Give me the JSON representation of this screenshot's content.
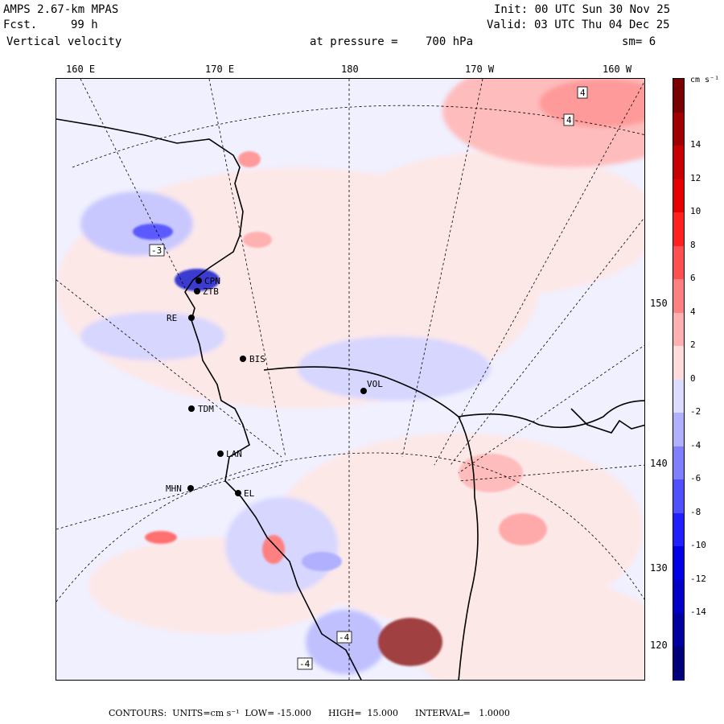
{
  "header": {
    "model": "AMPS 2.67-km MPAS",
    "fcst_label": "Fcst.",
    "fcst_value": "99 h",
    "field": "Vertical velocity",
    "init": "Init: 00 UTC Sun 30 Nov 25",
    "valid": "Valid: 03 UTC Thu 04 Dec 25",
    "pressure_label": "at pressure =",
    "pressure_value": "700 hPa",
    "smooth": "sm= 6"
  },
  "map": {
    "longitude_labels": [
      "160 E",
      "170 E",
      "180",
      "170 W",
      "160 W"
    ],
    "latitude_labels": [
      "150 W",
      "140 W",
      "130 W",
      "120 W"
    ],
    "stations": [
      {
        "id": "CPN"
      },
      {
        "id": "ZTB"
      },
      {
        "id": "RE"
      },
      {
        "id": "BIS"
      },
      {
        "id": "VOL"
      },
      {
        "id": "TDM"
      },
      {
        "id": "LAN"
      },
      {
        "id": "MHN"
      },
      {
        "id": "EL"
      }
    ],
    "contour_labels": [
      "4",
      "4",
      "-4",
      "-4",
      "-3"
    ]
  },
  "colorbar": {
    "units": "cm s⁻¹",
    "ticks": [
      "14",
      "12",
      "10",
      "8",
      "6",
      "4",
      "2",
      "0",
      "-2",
      "-4",
      "-6",
      "-8",
      "-10",
      "-12",
      "-14"
    ],
    "colors": [
      "#7a0000",
      "#a00000",
      "#c80000",
      "#e60000",
      "#ff2020",
      "#ff5050",
      "#ff8080",
      "#ffb0b0",
      "#ffdcdc",
      "#dcdcff",
      "#b0b0ff",
      "#8080ff",
      "#5050ff",
      "#2020ff",
      "#0000e6",
      "#0000c8",
      "#0000a0",
      "#00007a"
    ]
  },
  "footer": {
    "text": "CONTOURS:  UNITS=cm s⁻¹  LOW= -15.000      HIGH=  15.000      INTERVAL=   1.0000"
  }
}
